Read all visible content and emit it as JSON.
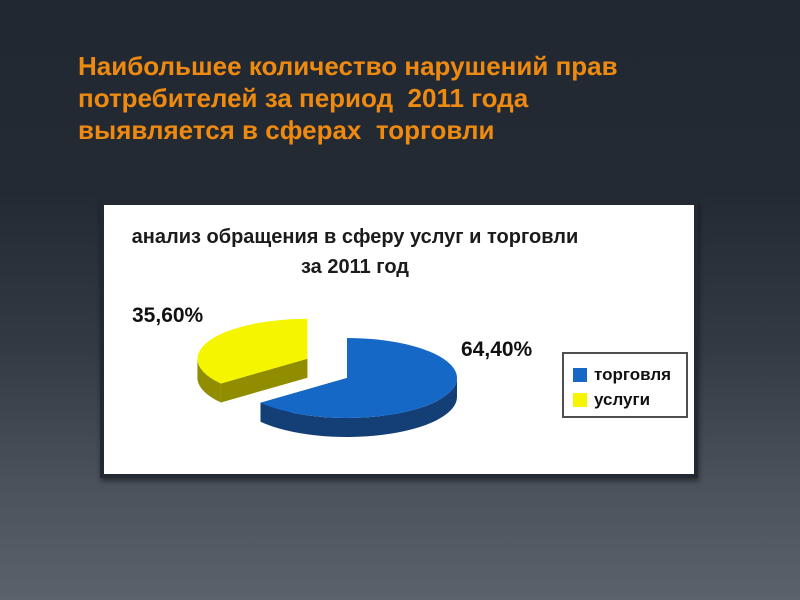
{
  "slide": {
    "title_lines": [
      "Наибольшее количество нарушений прав",
      "потребителей за период  2011 года",
      "выявляется в сферах  торговли"
    ],
    "title_color": "#ee8a10",
    "background_top_color": "#232932",
    "background_bottom_color": "#5b626c"
  },
  "chart_data": {
    "type": "pie",
    "effect": "3d-exploded",
    "title": "анализ обращения в сферу услуг и торговли за 2011 год",
    "title_lines": [
      "анализ обращения в сферу услуг и торговли",
      "за 2011 год"
    ],
    "start_angle_deg": 90,
    "direction": "clockwise",
    "legend_position": "right",
    "grid": false,
    "series": [
      {
        "name": "торговля",
        "value": 64.4,
        "label": "64,40%",
        "color": "#1568c6",
        "side_color": "#133f76",
        "exploded": false
      },
      {
        "name": "услуги",
        "value": 35.6,
        "label": "35,60%",
        "color": "#f5f500",
        "side_color": "#918d00",
        "exploded": true
      }
    ]
  }
}
